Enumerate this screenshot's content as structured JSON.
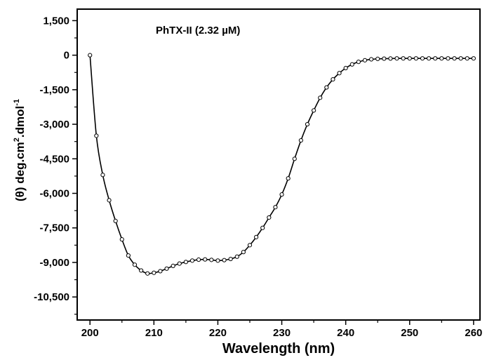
{
  "chart_data": {
    "type": "scatter",
    "annotation": "PhTX-II (2.32 µM)",
    "xlabel": "Wavelength (nm)",
    "ylabel_main": "(θ) deg.cm",
    "ylabel_sup1": "2",
    "ylabel_mid": ".dmol",
    "ylabel_sup2": "-1",
    "xlim": [
      198,
      261
    ],
    "ylim": [
      -11500,
      2000
    ],
    "x_ticks": [
      200,
      210,
      220,
      230,
      240,
      250,
      260
    ],
    "x_tick_labels": [
      "200",
      "210",
      "220",
      "230",
      "240",
      "250",
      "260"
    ],
    "y_ticks": [
      1500,
      0,
      -1500,
      -3000,
      -4500,
      -6000,
      -7500,
      -9000,
      -10500
    ],
    "y_tick_labels": [
      "1,500",
      "0",
      "-1,500",
      "-3,000",
      "-4,500",
      "-6,000",
      "-7,500",
      "-9,000",
      "-10,500"
    ],
    "grid": false,
    "series": [
      {
        "marker": "open-circle",
        "line": "solid",
        "x": [
          200,
          201,
          202,
          203,
          204,
          205,
          206,
          207,
          208,
          209,
          210,
          211,
          212,
          213,
          214,
          215,
          216,
          217,
          218,
          219,
          220,
          221,
          222,
          223,
          224,
          225,
          226,
          227,
          228,
          229,
          230,
          231,
          232,
          233,
          234,
          235,
          236,
          237,
          238,
          239,
          240,
          241,
          242,
          243,
          244,
          245,
          246,
          247,
          248,
          249,
          250,
          251,
          252,
          253,
          254,
          255,
          256,
          257,
          258,
          259,
          260
        ],
        "y": [
          0,
          -3500,
          -5200,
          -6300,
          -7200,
          -8000,
          -8700,
          -9100,
          -9350,
          -9480,
          -9450,
          -9380,
          -9270,
          -9150,
          -9050,
          -8980,
          -8920,
          -8880,
          -8870,
          -8890,
          -8920,
          -8900,
          -8850,
          -8750,
          -8550,
          -8250,
          -7900,
          -7500,
          -7050,
          -6600,
          -6050,
          -5350,
          -4500,
          -3700,
          -3000,
          -2400,
          -1850,
          -1400,
          -1050,
          -780,
          -560,
          -400,
          -290,
          -220,
          -180,
          -160,
          -150,
          -145,
          -140,
          -140,
          -140,
          -140,
          -140,
          -140,
          -140,
          -140,
          -140,
          -140,
          -140,
          -140,
          -140
        ]
      }
    ]
  }
}
